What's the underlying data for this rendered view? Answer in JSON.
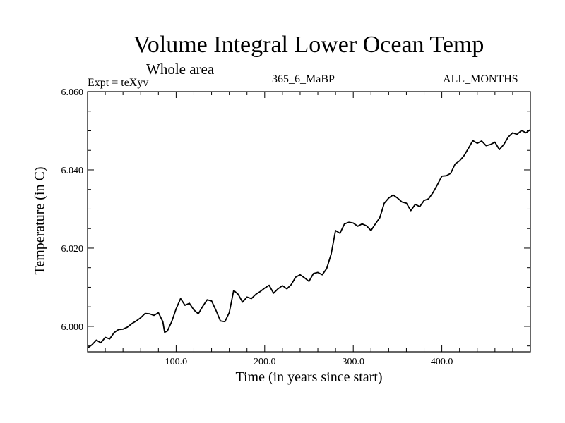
{
  "header": {
    "title": "Volume Integral Lower Ocean Temp",
    "subtitle": "Whole area",
    "expt": "Expt = teXyv",
    "run": "365_6_MaBP",
    "months": "ALL_MONTHS"
  },
  "chart_data": {
    "type": "line",
    "title": "Volume Integral Lower Ocean Temp",
    "subtitle": "Whole area",
    "xlabel": "Time (in years since start)",
    "ylabel": "Temperature (in C)",
    "xlim": [
      0,
      500
    ],
    "ylim": [
      5.9935,
      6.06
    ],
    "x_ticks": [
      100,
      200,
      300,
      400
    ],
    "x_tick_labels": [
      "100.0",
      "200.0",
      "300.0",
      "400.0"
    ],
    "y_ticks": [
      6.0,
      6.02,
      6.04,
      6.06
    ],
    "y_tick_labels": [
      "6.000",
      "6.020",
      "6.040",
      "6.060"
    ],
    "grid": false,
    "line_color": "#000000",
    "series": [
      {
        "x": [
          0,
          5,
          10,
          15,
          20,
          25,
          30,
          35,
          40,
          45,
          50,
          55,
          60,
          65,
          70,
          75,
          80,
          85,
          87,
          90,
          95,
          100,
          105,
          110,
          115,
          120,
          125,
          130,
          135,
          140,
          145,
          150,
          155,
          160,
          165,
          170,
          175,
          180,
          185,
          190,
          195,
          200,
          205,
          210,
          215,
          220,
          225,
          230,
          235,
          240,
          245,
          250,
          255,
          260,
          265,
          270,
          275,
          280,
          285,
          290,
          295,
          300,
          305,
          310,
          315,
          320,
          325,
          330,
          335,
          340,
          345,
          350,
          355,
          360,
          365,
          370,
          375,
          380,
          385,
          390,
          395,
          400,
          405,
          410,
          415,
          420,
          425,
          430,
          435,
          440,
          445,
          450,
          455,
          460,
          465,
          470,
          475,
          480,
          485,
          490,
          495,
          500
        ],
        "values": [
          5.9945,
          5.9953,
          5.9965,
          5.9958,
          5.9972,
          5.9968,
          5.9984,
          5.9992,
          5.9993,
          5.9998,
          6.0007,
          6.0014,
          6.0022,
          6.0033,
          6.0032,
          6.0028,
          6.0035,
          6.0012,
          5.9985,
          5.9988,
          6.0012,
          6.0045,
          6.0071,
          6.0054,
          6.0059,
          6.0042,
          6.0032,
          6.0051,
          6.0068,
          6.0065,
          6.0041,
          6.0014,
          6.0012,
          6.0035,
          6.0092,
          6.0082,
          6.0062,
          6.0075,
          6.0071,
          6.0082,
          6.0089,
          6.0098,
          6.0105,
          6.0085,
          6.0096,
          6.0104,
          6.0096,
          6.0107,
          6.0126,
          6.0132,
          6.0124,
          6.0115,
          6.0135,
          6.0138,
          6.0132,
          6.0148,
          6.0185,
          6.0245,
          6.0238,
          6.0262,
          6.0266,
          6.0264,
          6.0256,
          6.0262,
          6.0257,
          6.0245,
          6.0262,
          6.0278,
          6.0315,
          6.0328,
          6.0336,
          6.0328,
          6.0318,
          6.0315,
          6.0296,
          6.0312,
          6.0306,
          6.0322,
          6.0326,
          6.0342,
          6.0362,
          6.0384,
          6.0385,
          6.0391,
          6.0415,
          6.0423,
          6.0436,
          6.0455,
          6.0475,
          6.0468,
          6.0474,
          6.0462,
          6.0465,
          6.0471,
          6.0452,
          6.0465,
          6.0484,
          6.0495,
          6.0491,
          6.0501,
          6.0495,
          6.0503
        ]
      }
    ]
  }
}
